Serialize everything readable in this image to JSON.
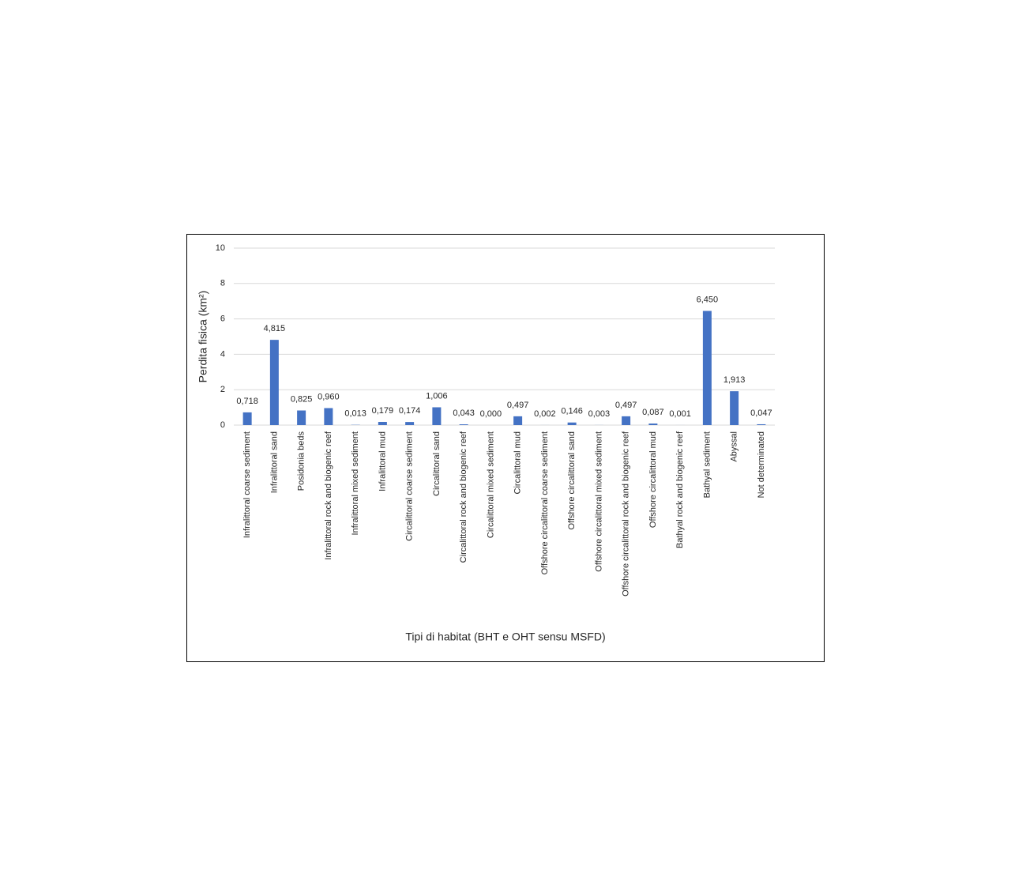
{
  "chart_data": {
    "type": "bar",
    "x_label": "Tipi di habitat (BHT e OHT sensu MSFD)",
    "y_label": "Perdita fisica (km²)",
    "categories": [
      "Infralittoral coarse sediment",
      "Infralittoral sand",
      "Posidonia beds",
      "Infralittoral rock and biogenic reef",
      "Infralittoral mixed sediment",
      "Infralittoral mud",
      "Circalittoral coarse sediment",
      "Circalittoral sand",
      "Circalittoral rock and biogenic reef",
      "Circalittoral mixed sediment",
      "Circalittoral mud",
      "Offshore circalittoral coarse sediment",
      "Offshore circalittoral sand",
      "Offshore circalittoral mixed sediment",
      "Offshore circalittoral rock and biogenic reef",
      "Offshore circalittoral mud",
      "Bathyal rock and biogenic reef",
      "Bathyal sediment",
      "Abyssal",
      "Not determinated"
    ],
    "values": [
      0.718,
      4.815,
      0.825,
      0.96,
      0.013,
      0.179,
      0.174,
      1.006,
      0.043,
      0.0,
      0.497,
      0.002,
      0.146,
      0.003,
      0.497,
      0.087,
      0.001,
      6.45,
      1.913,
      0.047
    ],
    "value_labels": [
      "0,718",
      "4,815",
      "0,825",
      "0,960",
      "0,013",
      "0,179",
      "0,174",
      "1,006",
      "0,043",
      "0,000",
      "0,497",
      "0,002",
      "0,146",
      "0,003",
      "0,497",
      "0,087",
      "0,001",
      "6,450",
      "1,913",
      "0,047"
    ],
    "color": "#4472c4",
    "ylim": [
      0,
      10
    ],
    "yticks": [
      0,
      2,
      4,
      6,
      8,
      10
    ],
    "grid": true
  }
}
